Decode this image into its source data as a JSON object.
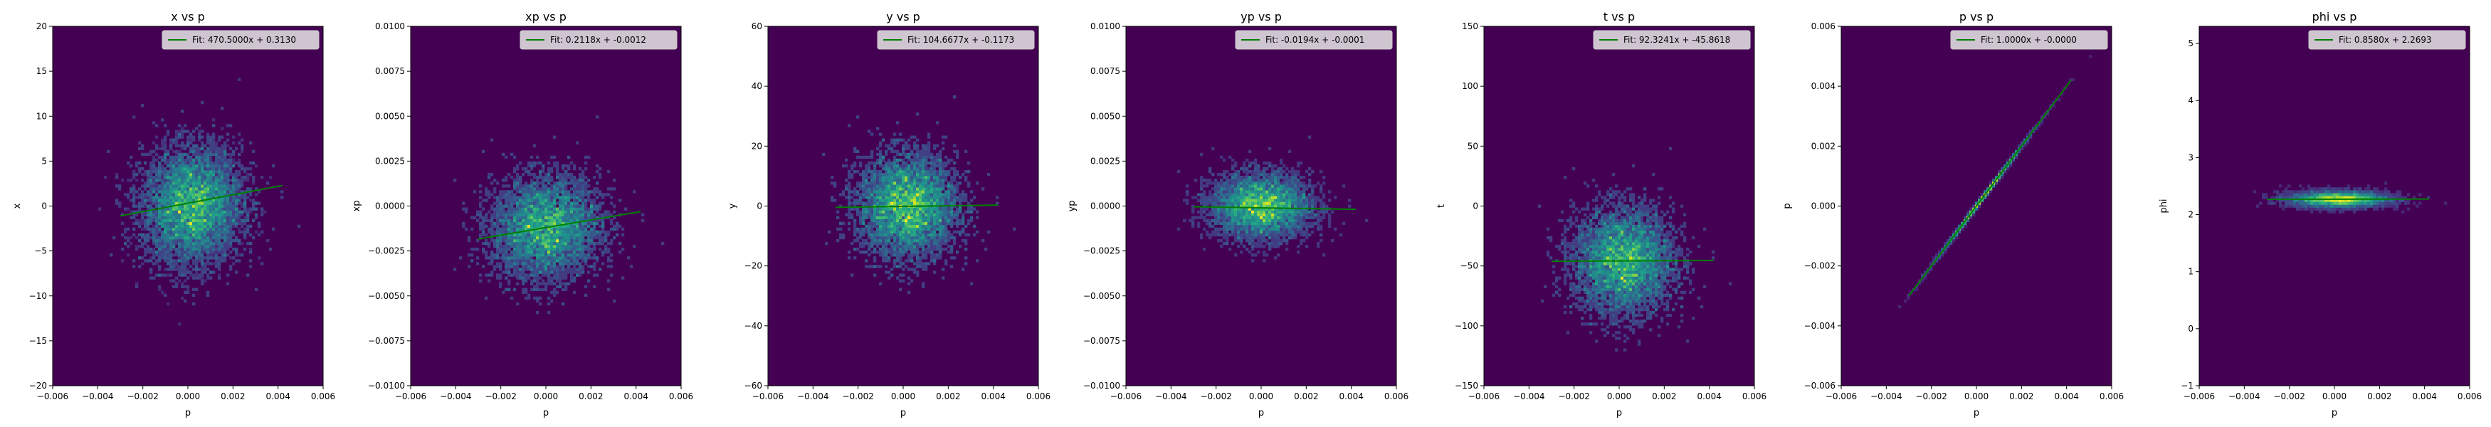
{
  "chart_data": [
    {
      "type": "heatmap",
      "title": "x vs p",
      "xlabel": "p",
      "ylabel": "x",
      "xlim": [
        -0.006,
        0.006
      ],
      "ylim": [
        -20,
        20
      ],
      "xticks": [
        "−0.006",
        "−0.004",
        "−0.002",
        "0.000",
        "0.002",
        "0.004",
        "0.006"
      ],
      "yticks": [
        "−20",
        "−15",
        "−10",
        "−5",
        "0",
        "5",
        "10",
        "15",
        "20"
      ],
      "legend": "Fit: 470.5000x + 0.3130",
      "fit": {
        "slope": 470.5,
        "intercept": 0.313,
        "x_range": [
          -0.003,
          0.0042
        ]
      },
      "blob": {
        "cx": 0.0002,
        "cy": 0.0,
        "sx": 0.0011,
        "sy": 3.2
      }
    },
    {
      "type": "heatmap",
      "title": "xp vs p",
      "xlabel": "p",
      "ylabel": "xp",
      "xlim": [
        -0.006,
        0.006
      ],
      "ylim": [
        -0.01,
        0.01
      ],
      "xticks": [
        "−0.006",
        "−0.004",
        "−0.002",
        "0.000",
        "0.002",
        "0.004",
        "0.006"
      ],
      "yticks": [
        "−0.0100",
        "−0.0075",
        "−0.0050",
        "−0.0025",
        "0.0000",
        "0.0025",
        "0.0050",
        "0.0075",
        "0.0100"
      ],
      "legend": "Fit: 0.2118x + -0.0012",
      "fit": {
        "slope": 0.2118,
        "intercept": -0.0012,
        "x_range": [
          -0.003,
          0.0042
        ]
      },
      "blob": {
        "cx": 0.0,
        "cy": -0.0012,
        "sx": 0.0012,
        "sy": 0.0014
      }
    },
    {
      "type": "heatmap",
      "title": "y vs p",
      "xlabel": "p",
      "ylabel": "y",
      "xlim": [
        -0.006,
        0.006
      ],
      "ylim": [
        -60,
        60
      ],
      "xticks": [
        "−0.006",
        "−0.004",
        "−0.002",
        "0.000",
        "0.002",
        "0.004",
        "0.006"
      ],
      "yticks": [
        "−60",
        "−40",
        "−20",
        "0",
        "20",
        "40",
        "60"
      ],
      "legend": "Fit: 104.6677x + -0.1173",
      "fit": {
        "slope": 104.6677,
        "intercept": -0.1173,
        "x_range": [
          -0.003,
          0.0042
        ]
      },
      "blob": {
        "cx": 0.0002,
        "cy": 0.0,
        "sx": 0.0011,
        "sy": 8.5
      }
    },
    {
      "type": "heatmap",
      "title": "yp vs p",
      "xlabel": "p",
      "ylabel": "yp",
      "xlim": [
        -0.006,
        0.006
      ],
      "ylim": [
        -0.01,
        0.01
      ],
      "xticks": [
        "−0.006",
        "−0.004",
        "−0.002",
        "0.000",
        "0.002",
        "0.004",
        "0.006"
      ],
      "yticks": [
        "−0.0100",
        "−0.0075",
        "−0.0050",
        "−0.0025",
        "0.0000",
        "0.0025",
        "0.0050",
        "0.0075",
        "0.0100"
      ],
      "legend": "Fit: -0.0194x + -0.0001",
      "fit": {
        "slope": -0.0194,
        "intercept": -0.0001,
        "x_range": [
          -0.003,
          0.0042
        ]
      },
      "blob": {
        "cx": 0.0,
        "cy": 0.0,
        "sx": 0.0011,
        "sy": 0.0009
      }
    },
    {
      "type": "heatmap",
      "title": "t vs p",
      "xlabel": "p",
      "ylabel": "t",
      "xlim": [
        -0.006,
        0.006
      ],
      "ylim": [
        -150,
        150
      ],
      "xticks": [
        "−0.006",
        "−0.004",
        "−0.002",
        "0.000",
        "0.002",
        "0.004",
        "0.006"
      ],
      "yticks": [
        "−150",
        "−100",
        "−50",
        "0",
        "50",
        "100",
        "150"
      ],
      "legend": "Fit: 92.3241x + -45.8618",
      "fit": {
        "slope": 92.3241,
        "intercept": -45.8618,
        "x_range": [
          -0.003,
          0.0042
        ]
      },
      "blob": {
        "cx": 0.0002,
        "cy": -46.0,
        "sx": 0.0011,
        "sy": 22.0
      }
    },
    {
      "type": "heatmap",
      "title": "p vs p",
      "xlabel": "p",
      "ylabel": "p",
      "xlim": [
        -0.006,
        0.006
      ],
      "ylim": [
        -0.006,
        0.006
      ],
      "xticks": [
        "−0.006",
        "−0.004",
        "−0.002",
        "0.000",
        "0.002",
        "0.004",
        "0.006"
      ],
      "yticks": [
        "−0.006",
        "−0.004",
        "−0.002",
        "0.000",
        "0.002",
        "0.004",
        "0.006"
      ],
      "legend": "Fit: 1.0000x + -0.0000",
      "fit": {
        "slope": 1.0,
        "intercept": 0.0,
        "x_range": [
          -0.003,
          0.0042
        ]
      },
      "blob": {
        "cx": 0.0003,
        "cy": 0.0003,
        "sx": 0.0011,
        "sy": 0.0,
        "diagonal": true
      }
    },
    {
      "type": "heatmap",
      "title": "phi vs p",
      "xlabel": "p",
      "ylabel": "phi",
      "xlim": [
        -0.006,
        0.006
      ],
      "ylim": [
        -1,
        5.3
      ],
      "xticks": [
        "−0.006",
        "−0.004",
        "−0.002",
        "0.000",
        "0.002",
        "0.004",
        "0.006"
      ],
      "yticks": [
        "−1",
        "0",
        "1",
        "2",
        "3",
        "4",
        "5"
      ],
      "yticks_vals": [
        -1,
        0,
        1,
        2,
        3,
        4,
        5
      ],
      "legend": "Fit: 0.8580x + 2.2693",
      "fit": {
        "slope": 0.858,
        "intercept": 2.2693,
        "x_range": [
          -0.003,
          0.0042
        ]
      },
      "blob": {
        "cx": 0.0002,
        "cy": 2.27,
        "sx": 0.0011,
        "sy": 0.07
      }
    }
  ],
  "colors": {
    "background": "#440154",
    "fit_line": "#008000",
    "legend_bg": "#e8e8e8"
  }
}
